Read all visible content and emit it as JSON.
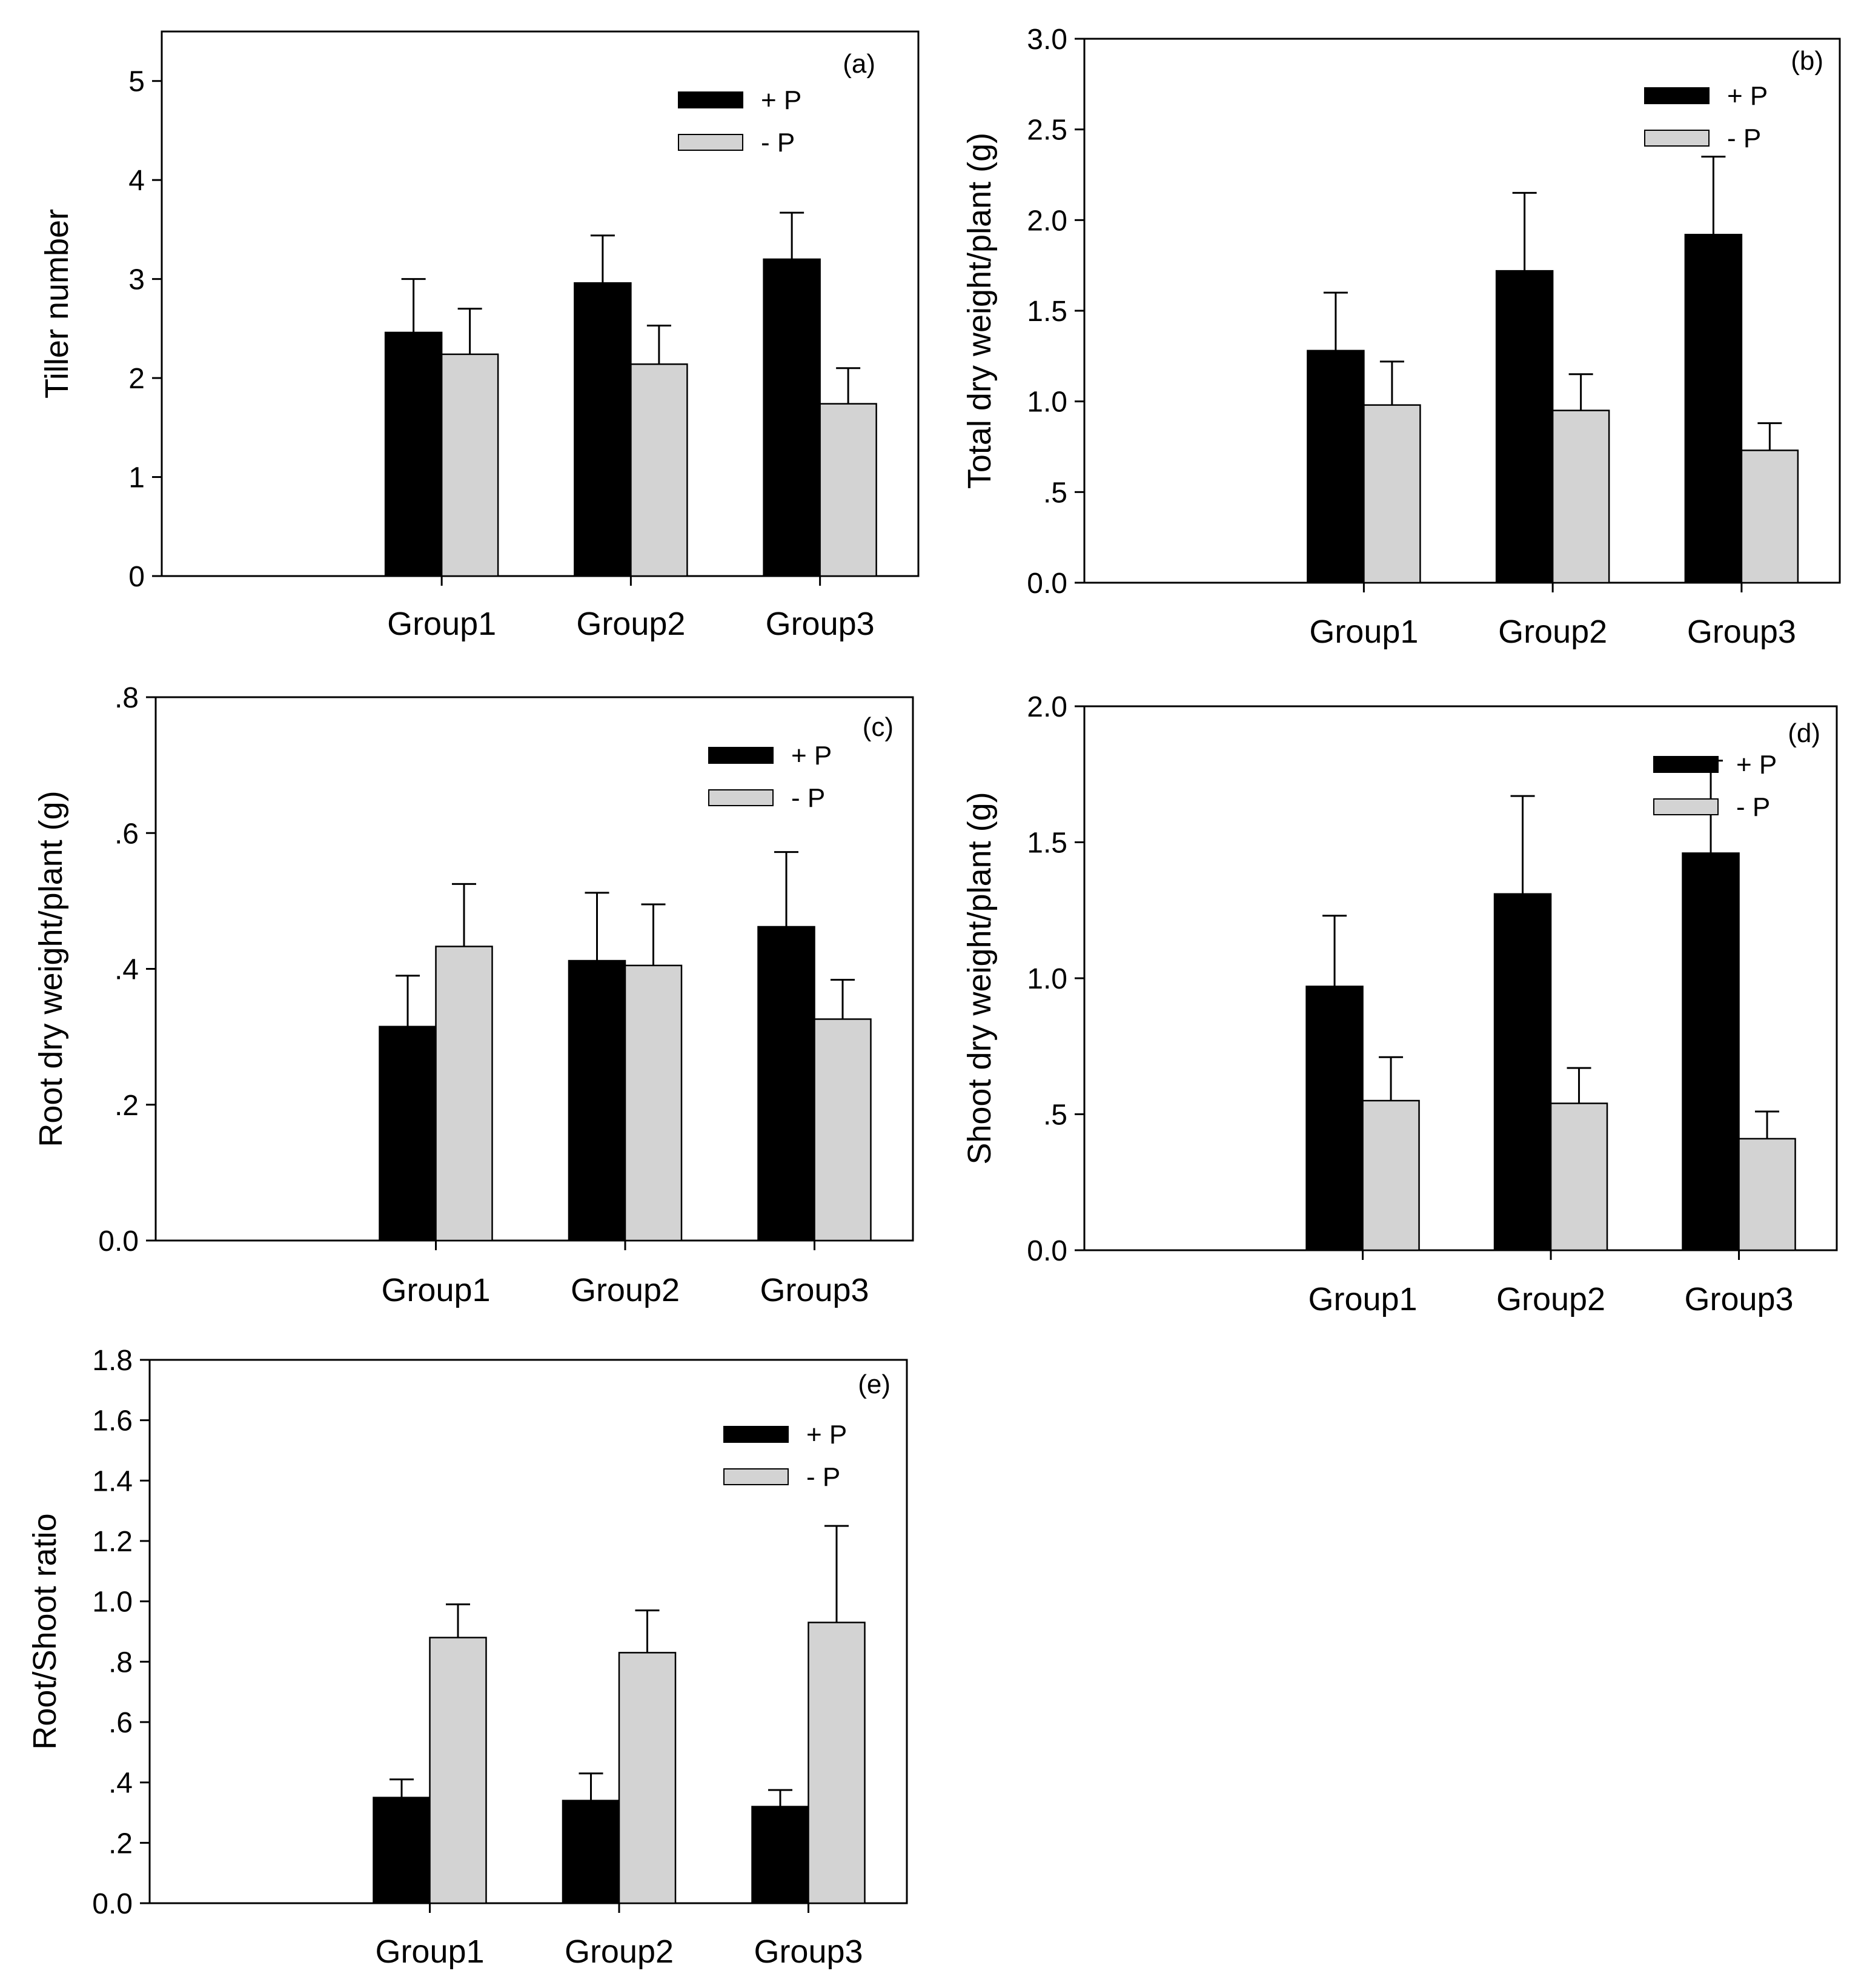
{
  "colors": {
    "plus_p": "#000000",
    "minus_p": "#d3d3d3",
    "axis": "#000000"
  },
  "chart_data": [
    {
      "type": "bar",
      "panel_label": "(a)",
      "ylabel": "Tiller number",
      "xlabel": "",
      "categories": [
        "Group1",
        "Group2",
        "Group3"
      ],
      "ylim": [
        0,
        5.5
      ],
      "yticks": [
        0,
        1,
        2,
        3,
        4,
        5
      ],
      "ytick_labels": [
        "0",
        "1",
        "2",
        "3",
        "4",
        "5"
      ],
      "legend_position": "top-right",
      "series": [
        {
          "name": "+ P",
          "color": "#000000",
          "values": [
            2.46,
            2.96,
            3.2
          ],
          "errors": [
            0.54,
            0.48,
            0.47
          ]
        },
        {
          "name": "- P",
          "color": "#d3d3d3",
          "values": [
            2.24,
            2.14,
            1.74
          ],
          "errors": [
            0.46,
            0.39,
            0.36
          ]
        }
      ]
    },
    {
      "type": "bar",
      "panel_label": "(b)",
      "ylabel": "Total dry weight/plant (g)",
      "xlabel": "",
      "categories": [
        "Group1",
        "Group2",
        "Group3"
      ],
      "ylim": [
        0,
        3.0
      ],
      "yticks": [
        0,
        0.5,
        1.0,
        1.5,
        2.0,
        2.5,
        3.0
      ],
      "ytick_labels": [
        "0.0",
        ".5",
        "1.0",
        "1.5",
        "2.0",
        "2.5",
        "3.0"
      ],
      "legend_position": "top-right",
      "series": [
        {
          "name": "+ P",
          "color": "#000000",
          "values": [
            1.28,
            1.72,
            1.92
          ],
          "errors": [
            0.32,
            0.43,
            0.43
          ]
        },
        {
          "name": "- P",
          "color": "#d3d3d3",
          "values": [
            0.98,
            0.95,
            0.73
          ],
          "errors": [
            0.24,
            0.2,
            0.15
          ]
        }
      ]
    },
    {
      "type": "bar",
      "panel_label": "(c)",
      "ylabel": "Root dry weight/plant (g)",
      "xlabel": "",
      "categories": [
        "Group1",
        "Group2",
        "Group3"
      ],
      "ylim": [
        0,
        0.8
      ],
      "yticks": [
        0,
        0.2,
        0.4,
        0.6,
        0.8
      ],
      "ytick_labels": [
        "0.0",
        ".2",
        ".4",
        ".6",
        ".8"
      ],
      "legend_position": "top-right",
      "series": [
        {
          "name": "+ P",
          "color": "#000000",
          "values": [
            0.315,
            0.412,
            0.462
          ],
          "errors": [
            0.075,
            0.1,
            0.11
          ]
        },
        {
          "name": "- P",
          "color": "#d3d3d3",
          "values": [
            0.433,
            0.405,
            0.326
          ],
          "errors": [
            0.092,
            0.09,
            0.058
          ]
        }
      ]
    },
    {
      "type": "bar",
      "panel_label": "(d)",
      "ylabel": "Shoot dry weight/plant (g)",
      "xlabel": "",
      "categories": [
        "Group1",
        "Group2",
        "Group3"
      ],
      "ylim": [
        0,
        2.0
      ],
      "yticks": [
        0,
        0.5,
        1.0,
        1.5,
        2.0
      ],
      "ytick_labels": [
        "0.0",
        ".5",
        "1.0",
        "1.5",
        "2.0"
      ],
      "legend_position": "top-right",
      "series": [
        {
          "name": "+ P",
          "color": "#000000",
          "values": [
            0.97,
            1.31,
            1.46
          ],
          "errors": [
            0.26,
            0.36,
            0.34
          ]
        },
        {
          "name": "- P",
          "color": "#d3d3d3",
          "values": [
            0.55,
            0.54,
            0.41
          ],
          "errors": [
            0.16,
            0.13,
            0.1
          ]
        }
      ]
    },
    {
      "type": "bar",
      "panel_label": "(e)",
      "ylabel": "Root/Shoot ratio",
      "xlabel": "",
      "categories": [
        "Group1",
        "Group2",
        "Group3"
      ],
      "ylim": [
        0,
        1.8
      ],
      "yticks": [
        0,
        0.2,
        0.4,
        0.6,
        0.8,
        1.0,
        1.2,
        1.4,
        1.6,
        1.8
      ],
      "ytick_labels": [
        "0.0",
        ".2",
        ".4",
        ".6",
        ".8",
        "1.0",
        "1.2",
        "1.4",
        "1.6",
        "1.8"
      ],
      "legend_position": "top-right",
      "series": [
        {
          "name": "+ P",
          "color": "#000000",
          "values": [
            0.35,
            0.34,
            0.32
          ],
          "errors": [
            0.06,
            0.09,
            0.055
          ]
        },
        {
          "name": "- P",
          "color": "#d3d3d3",
          "values": [
            0.88,
            0.83,
            0.93
          ],
          "errors": [
            0.11,
            0.14,
            0.32
          ]
        }
      ]
    }
  ]
}
